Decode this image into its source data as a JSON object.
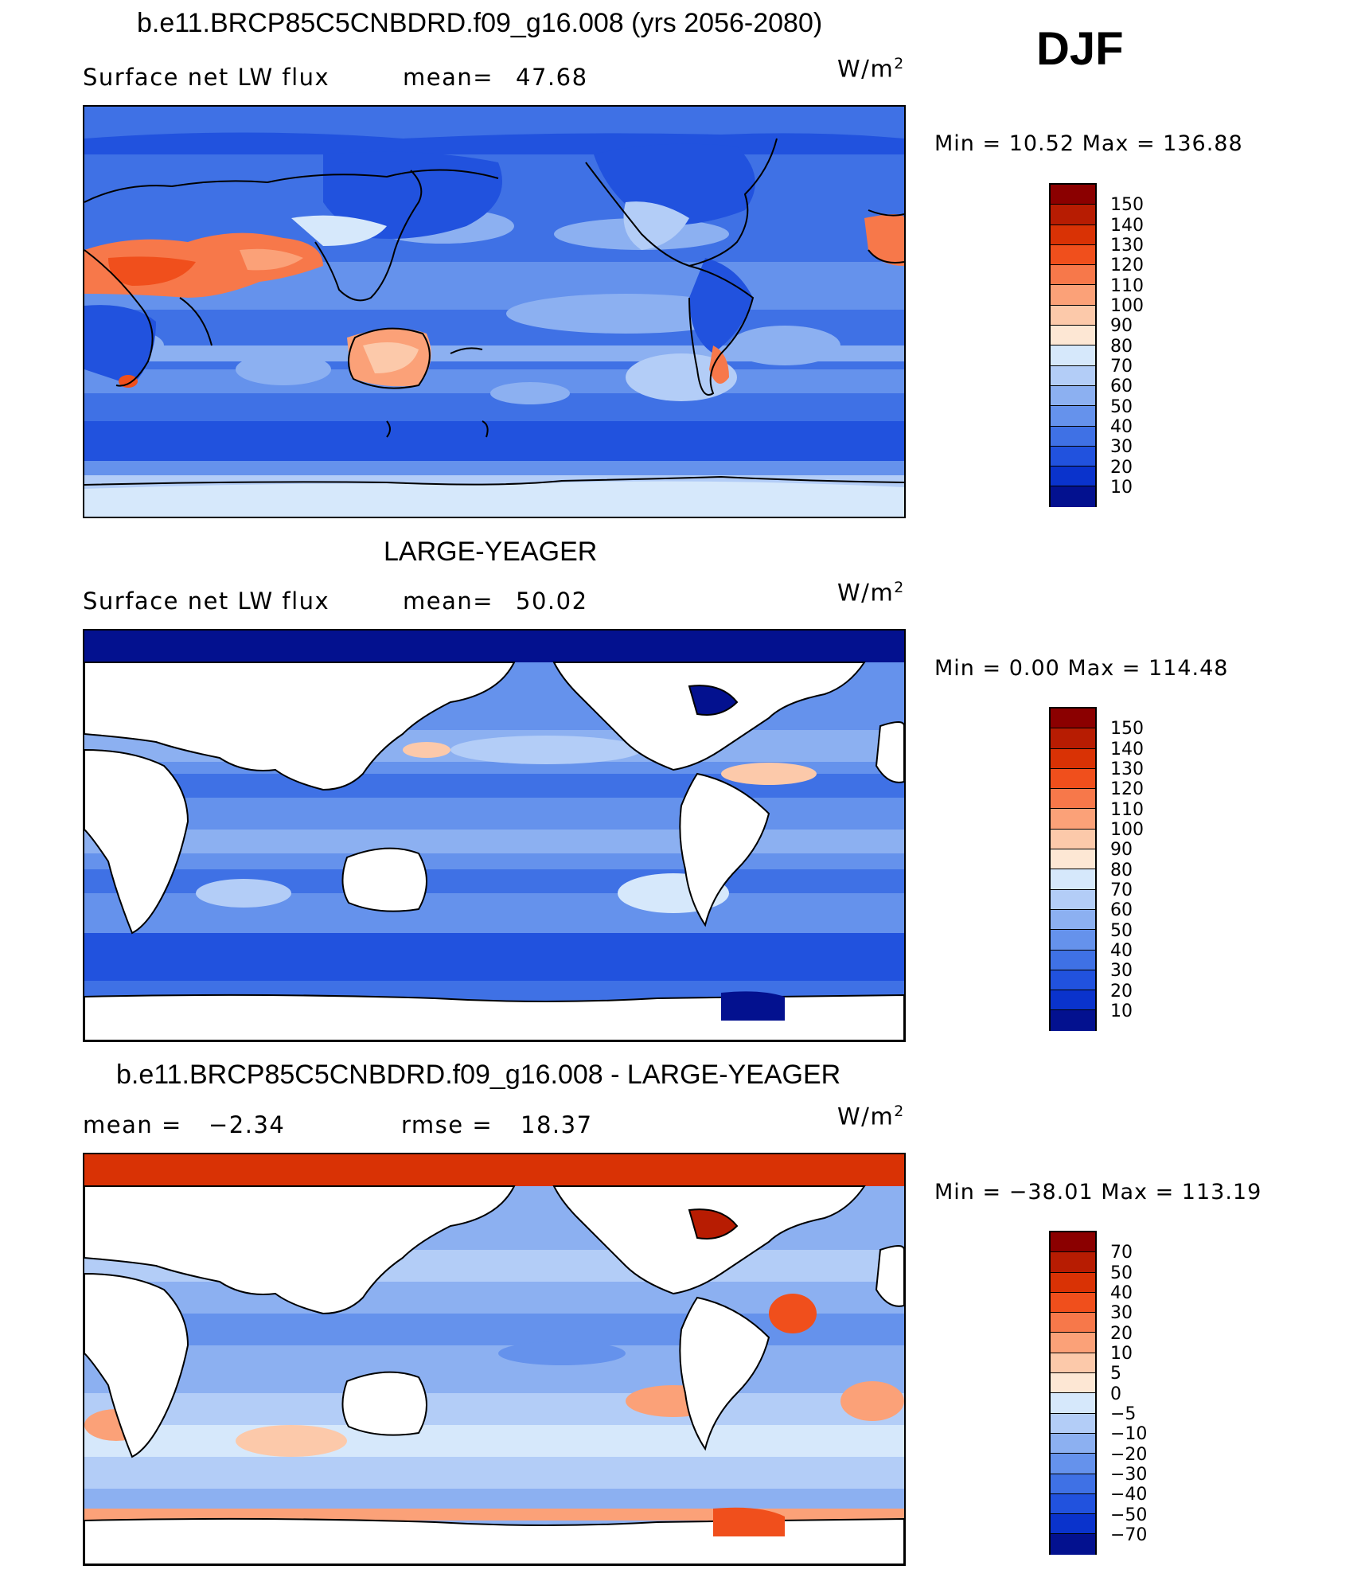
{
  "season": "DJF",
  "units_sup": "2",
  "units_base": "W/m",
  "panels": [
    {
      "title": "b.e11.BRCP85C5CNBDRD.f09_g16.008 (yrs 2056-2080)",
      "left_label": "Surface net LW flux",
      "stat_label": "mean=",
      "stat_value": "47.68",
      "min_max": "Min =   10.52 Max = 136.88",
      "colorbar_labels": [
        "150",
        "140",
        "130",
        "120",
        "110",
        "100",
        "90",
        "80",
        "70",
        "60",
        "50",
        "40",
        "30",
        "20",
        "10"
      ],
      "colors": [
        "#8b0000",
        "#b71c02",
        "#d93205",
        "#f04f1c",
        "#f7784a",
        "#fba178",
        "#fcc9aa",
        "#fde7d4",
        "#d6e8fb",
        "#b3cdf7",
        "#8cb0f1",
        "#6592ec",
        "#3f71e5",
        "#2152de",
        "#0a33cc",
        "#03118f"
      ]
    },
    {
      "title": "LARGE-YEAGER",
      "left_label": "Surface net LW flux",
      "stat_label": "mean=",
      "stat_value": "50.02",
      "min_max": "Min =    0.00 Max = 114.48",
      "colorbar_labels": [
        "150",
        "140",
        "130",
        "120",
        "110",
        "100",
        "90",
        "80",
        "70",
        "60",
        "50",
        "40",
        "30",
        "20",
        "10"
      ],
      "colors": [
        "#8b0000",
        "#b71c02",
        "#d93205",
        "#f04f1c",
        "#f7784a",
        "#fba178",
        "#fcc9aa",
        "#fde7d4",
        "#d6e8fb",
        "#b3cdf7",
        "#8cb0f1",
        "#6592ec",
        "#3f71e5",
        "#2152de",
        "#0a33cc",
        "#03118f"
      ]
    },
    {
      "title": "b.e11.BRCP85C5CNBDRD.f09_g16.008 - LARGE-YEAGER",
      "left_label": "mean =",
      "left_value": "−2.34",
      "stat_label": "rmse =",
      "stat_value": "18.37",
      "min_max": "Min = −38.01 Max = 113.19",
      "colorbar_labels": [
        "70",
        "50",
        "40",
        "30",
        "20",
        "10",
        "5",
        "0",
        "−5",
        "−10",
        "−20",
        "−30",
        "−40",
        "−50",
        "−70"
      ],
      "colors": [
        "#8b0000",
        "#b71c02",
        "#d93205",
        "#f04f1c",
        "#f7784a",
        "#fba178",
        "#fcc9aa",
        "#fde7d4",
        "#d6e8fb",
        "#b3cdf7",
        "#8cb0f1",
        "#6592ec",
        "#3f71e5",
        "#2152de",
        "#0a33cc",
        "#03118f"
      ]
    }
  ]
}
